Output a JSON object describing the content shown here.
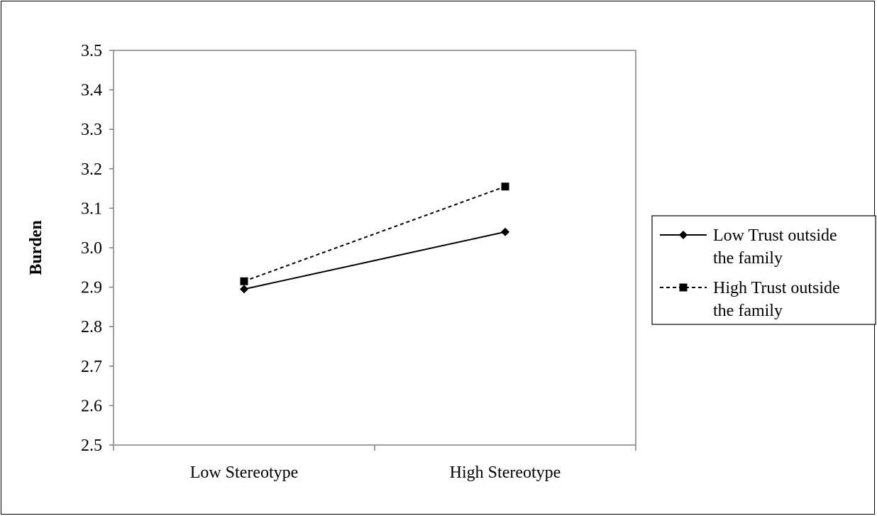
{
  "chart_data": {
    "type": "line",
    "title": "",
    "xlabel": "",
    "ylabel": "Burden",
    "categories": [
      "Low Stereotype",
      "High Stereotype"
    ],
    "ylim": [
      2.5,
      3.5
    ],
    "yticks": [
      "3.5",
      "3.4",
      "3.3",
      "3.2",
      "3.1",
      "3.0",
      "2.9",
      "2.8",
      "2.7",
      "2.6",
      "2.5"
    ],
    "grid": false,
    "legend_position": "right",
    "series": [
      {
        "name": "Low Trust outside the family",
        "label_lines": [
          "Low Trust outside",
          "the family"
        ],
        "values": [
          2.895,
          3.04
        ],
        "marker": "diamond",
        "dash": "solid",
        "color": "#000000"
      },
      {
        "name": "High Trust outside the family",
        "label_lines": [
          "High Trust outside",
          "the family"
        ],
        "values": [
          2.915,
          3.155
        ],
        "marker": "square",
        "dash": "dashed",
        "color": "#000000"
      }
    ]
  }
}
